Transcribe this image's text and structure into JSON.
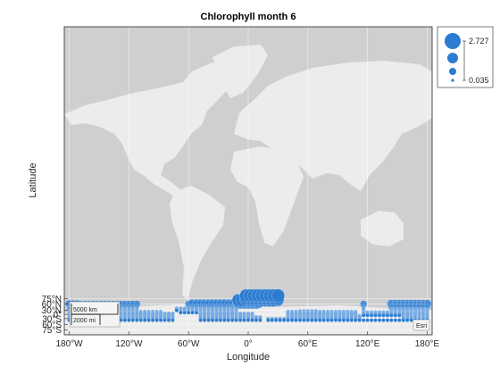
{
  "chart_data": {
    "type": "scatter",
    "title": "Chlorophyll month 6",
    "xlabel": "Longitude",
    "ylabel": "Latitude",
    "xlim": [
      -185,
      185
    ],
    "ylim": [
      -82,
      90
    ],
    "x_ticks": [
      {
        "value": -180,
        "label": "180°W"
      },
      {
        "value": -120,
        "label": "120°W"
      },
      {
        "value": -60,
        "label": "60°W"
      },
      {
        "value": 0,
        "label": "0°"
      },
      {
        "value": 60,
        "label": "60°E"
      },
      {
        "value": 120,
        "label": "120°E"
      },
      {
        "value": 180,
        "label": "180°E"
      }
    ],
    "y_ticks": [
      {
        "value": 75,
        "label": "75°N"
      },
      {
        "value": 60,
        "label": "60°N"
      },
      {
        "value": 30,
        "label": "30°N"
      },
      {
        "value": 0,
        "label": "0°"
      },
      {
        "value": -30,
        "label": "30°S"
      },
      {
        "value": -60,
        "label": "60°S"
      },
      {
        "value": -75,
        "label": "75°S"
      }
    ],
    "grid": true,
    "marker_color": "#2b7bd1",
    "size_legend": {
      "max_label": "2.727",
      "min_label": "0.035",
      "placement": "top-right outside"
    },
    "basemap": "grey canvas",
    "scalebar": {
      "km": "5000 km",
      "mi": "2000 mi"
    },
    "attribution": "Esri"
  }
}
